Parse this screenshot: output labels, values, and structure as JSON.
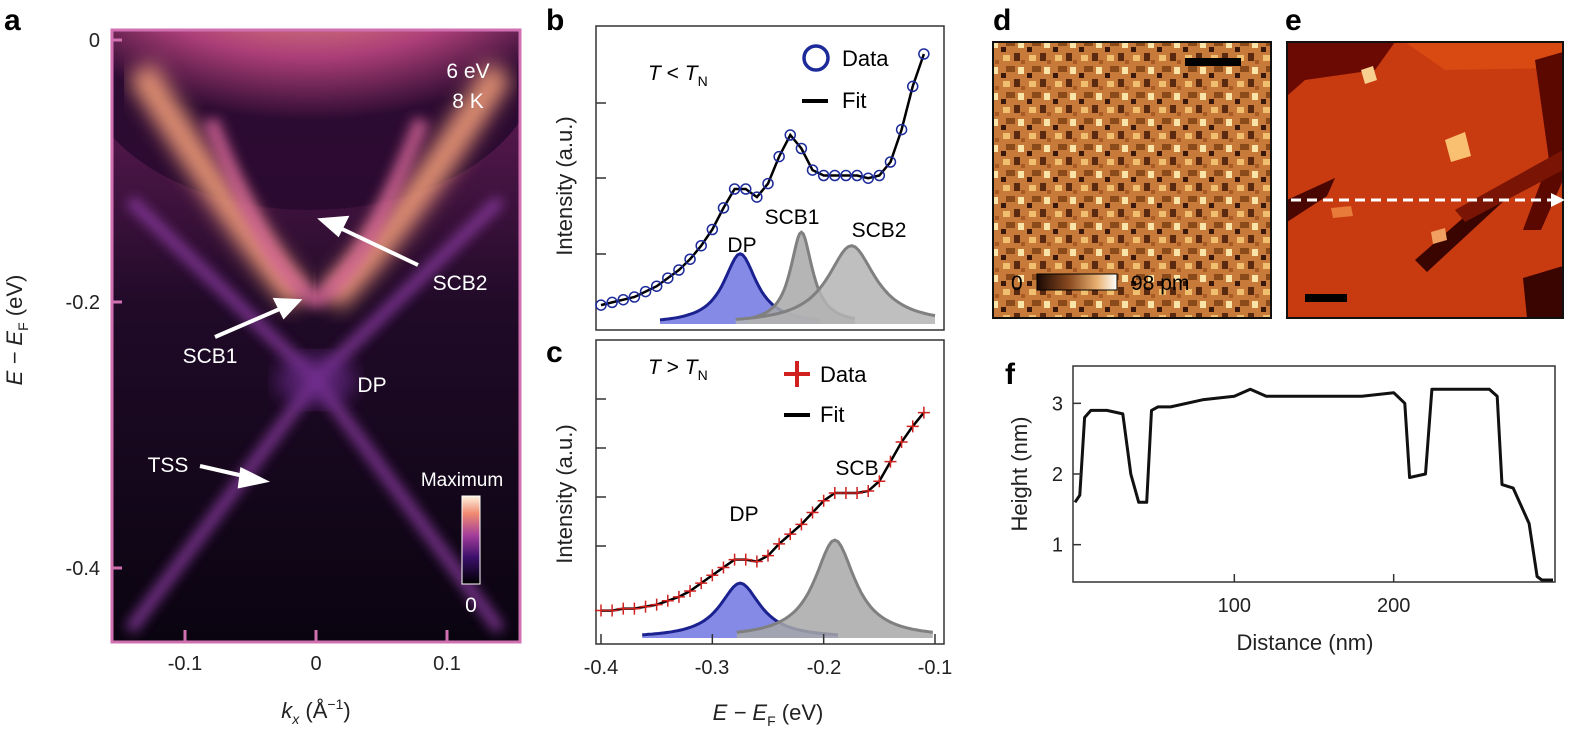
{
  "panels": {
    "a": {
      "label": "a",
      "photon_energy": "6 eV",
      "temperature": "8 K",
      "bands": {
        "scb2": "SCB2",
        "scb1": "SCB1",
        "dp": "DP",
        "tss": "TSS"
      },
      "colorbar": {
        "max_label": "Maximum",
        "min_label": "0"
      },
      "y_ticks": [
        "0",
        "-0.2",
        "-0.4"
      ],
      "x_ticks": [
        "-0.1",
        "0",
        "0.1"
      ],
      "y_label_main": "E − E",
      "y_label_sub": "F",
      "y_label_unit": " (eV)",
      "x_label_main": "k",
      "x_label_sub": "x",
      "x_label_unit": " (Å",
      "x_label_sup": "−1",
      "x_label_close": ")"
    },
    "b": {
      "label": "b",
      "condition_T": "T",
      "condition_op": " < ",
      "condition_TN": "T",
      "condition_N": "N",
      "legend_data": "Data",
      "legend_fit": "Fit",
      "peaks": {
        "dp": "DP",
        "scb1": "SCB1",
        "scb2": "SCB2"
      },
      "y_label": "Intensity (a.u.)"
    },
    "c": {
      "label": "c",
      "condition_T": "T",
      "condition_op": " > ",
      "condition_TN": "T",
      "condition_N": "N",
      "legend_data": "Data",
      "legend_fit": "Fit",
      "peaks": {
        "dp": "DP",
        "scb": "SCB"
      },
      "y_label": "Intensity (a.u.)",
      "x_ticks": [
        "-0.4",
        "-0.3",
        "-0.2",
        "-0.1"
      ],
      "x_label_main": "E − E",
      "x_label_sub": "F",
      "x_label_unit": " (eV)"
    },
    "d": {
      "label": "d",
      "colorbar_min": "0",
      "colorbar_max": "98 pm"
    },
    "e": {
      "label": "e"
    },
    "f": {
      "label": "f",
      "y_label": "Height (nm)",
      "x_label": "Distance (nm)",
      "y_ticks": [
        "1",
        "2",
        "3"
      ],
      "x_ticks": [
        "100",
        "200"
      ]
    }
  },
  "chart_data": [
    {
      "type": "scatter",
      "panel": "b",
      "xlim": [
        -0.4,
        -0.1
      ],
      "x": [
        -0.4,
        -0.39,
        -0.38,
        -0.37,
        -0.36,
        -0.35,
        -0.34,
        -0.33,
        -0.32,
        -0.31,
        -0.3,
        -0.29,
        -0.28,
        -0.27,
        -0.26,
        -0.25,
        -0.24,
        -0.23,
        -0.22,
        -0.21,
        -0.2,
        -0.19,
        -0.18,
        -0.17,
        -0.16,
        -0.15,
        -0.14,
        -0.13,
        -0.12,
        -0.11
      ],
      "y": [
        0.07,
        0.08,
        0.09,
        0.1,
        0.12,
        0.14,
        0.17,
        0.2,
        0.24,
        0.29,
        0.35,
        0.43,
        0.5,
        0.5,
        0.47,
        0.52,
        0.62,
        0.7,
        0.65,
        0.57,
        0.55,
        0.55,
        0.55,
        0.55,
        0.54,
        0.55,
        0.6,
        0.72,
        0.88,
        1.0
      ],
      "series": [
        {
          "name": "DP",
          "center": -0.275,
          "height": 0.26
        },
        {
          "name": "SCB1",
          "center": -0.22,
          "height": 0.34
        },
        {
          "name": "SCB2",
          "center": -0.175,
          "height": 0.29
        }
      ]
    },
    {
      "type": "scatter",
      "panel": "c",
      "xlim": [
        -0.4,
        -0.1
      ],
      "x_ticks": [
        -0.4,
        -0.3,
        -0.2,
        -0.1
      ],
      "x": [
        -0.4,
        -0.39,
        -0.38,
        -0.37,
        -0.36,
        -0.35,
        -0.34,
        -0.33,
        -0.32,
        -0.31,
        -0.3,
        -0.29,
        -0.28,
        -0.27,
        -0.26,
        -0.25,
        -0.24,
        -0.23,
        -0.22,
        -0.21,
        -0.2,
        -0.19,
        -0.18,
        -0.17,
        -0.16,
        -0.15,
        -0.14,
        -0.13,
        -0.12,
        -0.11
      ],
      "y": [
        0.14,
        0.14,
        0.15,
        0.15,
        0.16,
        0.17,
        0.19,
        0.21,
        0.24,
        0.28,
        0.32,
        0.36,
        0.4,
        0.4,
        0.39,
        0.42,
        0.48,
        0.53,
        0.58,
        0.64,
        0.7,
        0.74,
        0.74,
        0.74,
        0.75,
        0.8,
        0.9,
        1.0,
        1.08,
        1.15
      ],
      "series": [
        {
          "name": "DP",
          "center": -0.275,
          "height": 0.28
        },
        {
          "name": "SCB",
          "center": -0.19,
          "height": 0.5
        }
      ]
    },
    {
      "type": "line",
      "panel": "f",
      "xlabel": "Distance (nm)",
      "ylabel": "Height (nm)",
      "xlim": [
        0,
        300
      ],
      "ylim": [
        0.5,
        3.5
      ],
      "x_ticks": [
        100,
        200
      ],
      "y_ticks": [
        1,
        2,
        3
      ],
      "x": [
        0,
        3,
        6,
        10,
        20,
        30,
        35,
        40,
        45,
        48,
        52,
        60,
        80,
        100,
        110,
        120,
        150,
        180,
        200,
        207,
        210,
        220,
        224,
        230,
        260,
        265,
        268,
        275,
        285,
        290,
        293,
        300
      ],
      "y": [
        1.6,
        1.7,
        2.8,
        2.9,
        2.9,
        2.85,
        2.0,
        1.6,
        1.6,
        2.9,
        2.95,
        2.95,
        3.05,
        3.1,
        3.2,
        3.1,
        3.1,
        3.1,
        3.15,
        3.0,
        1.95,
        2.0,
        3.2,
        3.2,
        3.2,
        3.1,
        1.85,
        1.8,
        1.3,
        0.55,
        0.5,
        0.5
      ]
    }
  ]
}
